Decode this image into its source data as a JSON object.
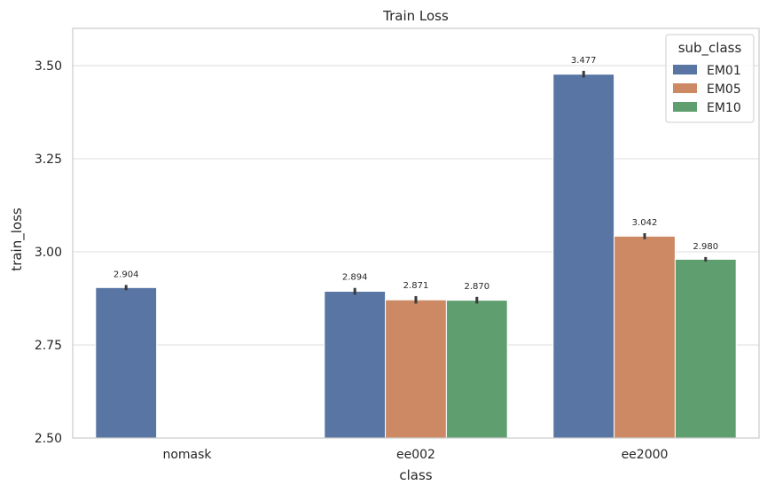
{
  "chart_data": {
    "type": "bar",
    "title": "Train Loss",
    "xlabel": "class",
    "ylabel": "train_loss",
    "categories": [
      "nomask",
      "ee002",
      "ee2000"
    ],
    "ylim": [
      2.5,
      3.6
    ],
    "yticks": [
      2.5,
      2.75,
      3.0,
      3.25,
      3.5
    ],
    "ytick_labels": [
      "2.50",
      "2.75",
      "3.00",
      "3.25",
      "3.50"
    ],
    "grid": "horizontal",
    "legend": {
      "title": "sub_class",
      "placement": "top-right",
      "entries": [
        "EM01",
        "EM05",
        "EM10"
      ]
    },
    "series": [
      {
        "name": "EM01",
        "color": "#5875a4",
        "values": [
          2.904,
          2.894,
          3.477
        ],
        "labels": [
          "2.904",
          "2.894",
          "3.477"
        ],
        "errors": [
          [
            2.897,
            2.911
          ],
          [
            2.885,
            2.903
          ],
          [
            3.468,
            3.486
          ]
        ]
      },
      {
        "name": "EM05",
        "color": "#cc8963",
        "values": [
          null,
          2.871,
          3.042
        ],
        "labels": [
          "",
          "2.871",
          "3.042"
        ],
        "errors": [
          null,
          [
            2.861,
            2.881
          ],
          [
            3.034,
            3.05
          ]
        ]
      },
      {
        "name": "EM10",
        "color": "#5f9e6e",
        "values": [
          null,
          2.87,
          2.98
        ],
        "labels": [
          "",
          "2.870",
          "2.980"
        ],
        "errors": [
          null,
          [
            2.861,
            2.879
          ],
          [
            2.974,
            2.986
          ]
        ]
      }
    ]
  }
}
